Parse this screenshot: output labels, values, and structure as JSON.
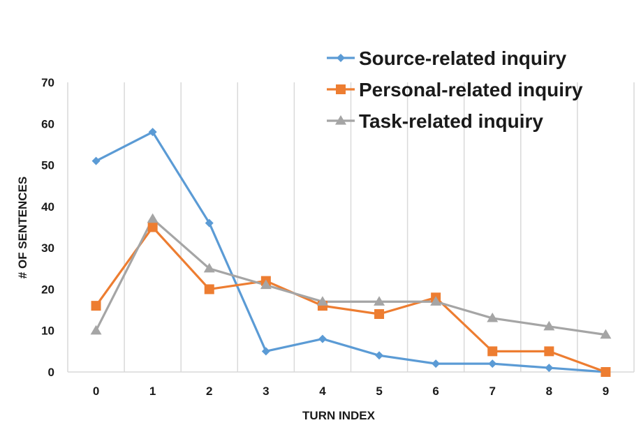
{
  "chart_data": {
    "type": "line",
    "title": "",
    "xlabel": "TURN INDEX",
    "ylabel": "# OF SENTENCES",
    "categories": [
      "0",
      "1",
      "2",
      "3",
      "4",
      "5",
      "6",
      "7",
      "8",
      "9"
    ],
    "x": [
      0,
      1,
      2,
      3,
      4,
      5,
      6,
      7,
      8,
      9
    ],
    "ylim": [
      0,
      70
    ],
    "yticks": [
      0,
      10,
      20,
      30,
      40,
      50,
      60,
      70
    ],
    "grid": "vertical",
    "legend_position": "top-right",
    "series": [
      {
        "name": "Source-related inquiry",
        "values": [
          51,
          58,
          36,
          5,
          8,
          4,
          2,
          2,
          1,
          0
        ],
        "color": "#5B9BD5",
        "marker": "diamond"
      },
      {
        "name": "Personal-related inquiry",
        "values": [
          16,
          35,
          20,
          22,
          16,
          14,
          18,
          5,
          5,
          0
        ],
        "color": "#ED7D31",
        "marker": "square"
      },
      {
        "name": "Task-related inquiry",
        "values": [
          10,
          37,
          25,
          21,
          17,
          17,
          17,
          13,
          11,
          9
        ],
        "color": "#A5A5A5",
        "marker": "triangle"
      }
    ]
  }
}
